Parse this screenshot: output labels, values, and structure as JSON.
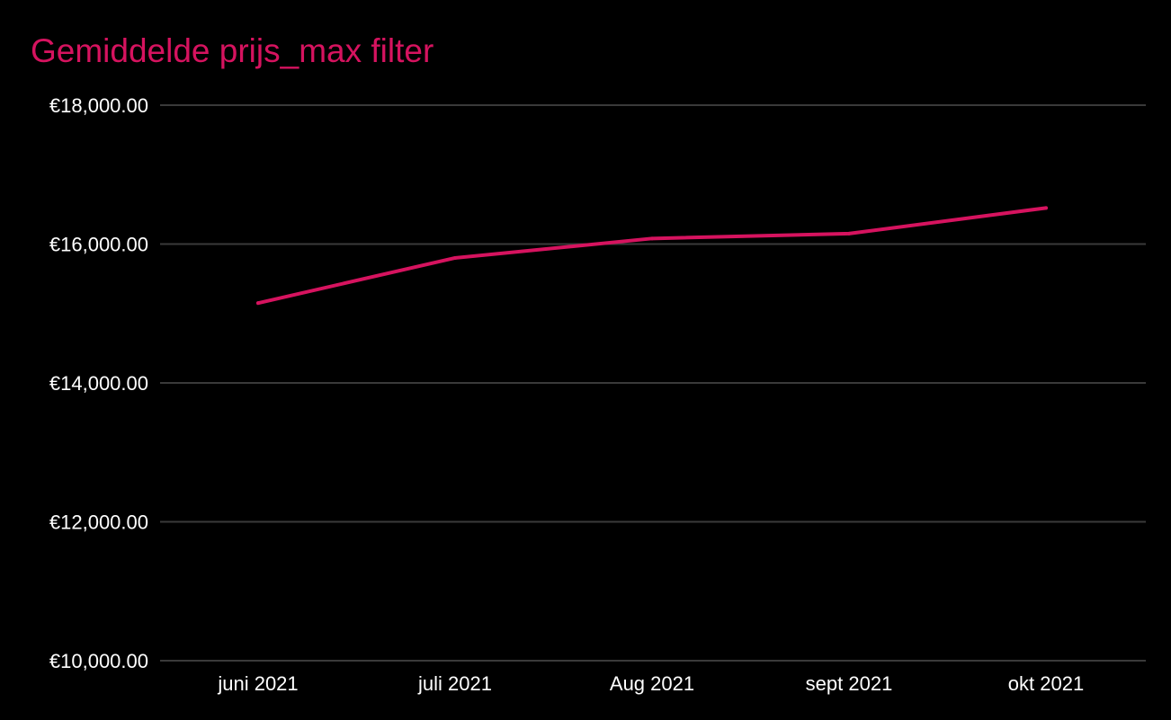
{
  "colors": {
    "background": "#000000",
    "accent": "#d6135f",
    "grid": "#3a3a3a",
    "text": "#ffffff"
  },
  "chart_data": {
    "type": "line",
    "title": "Gemiddelde prijs_max filter",
    "xlabel": "",
    "ylabel": "",
    "categories": [
      "juni 2021",
      "juli 2021",
      "Aug 2021",
      "sept 2021",
      "okt 2021"
    ],
    "series": [
      {
        "values": [
          15150,
          15800,
          16080,
          16150,
          16520
        ]
      }
    ],
    "ylim": [
      10000,
      18000
    ],
    "yticks": [
      10000,
      12000,
      14000,
      16000,
      18000
    ],
    "ytick_labels": [
      "€10,000.00",
      "€12,000.00",
      "€14,000.00",
      "€16,000.00",
      "€18,000.00"
    ],
    "grid": true,
    "legend": "none"
  }
}
